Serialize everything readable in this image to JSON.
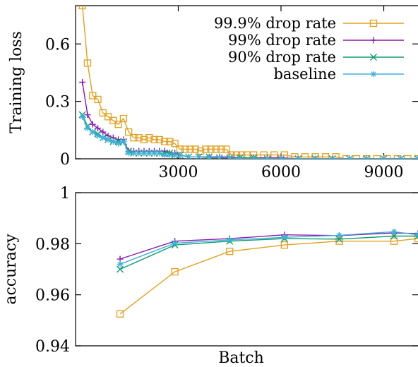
{
  "chart_data": [
    {
      "type": "line",
      "title": "",
      "xlabel": "",
      "ylabel": "Training loss",
      "xlim": [
        0,
        10000
      ],
      "ylim": [
        0,
        0.8
      ],
      "xticks": [
        3000,
        6000,
        9000
      ],
      "yticks": [
        0,
        0.3,
        0.6
      ],
      "x_tick_labels": [
        "3000",
        "6000",
        "9000"
      ],
      "y_tick_labels": [
        "0",
        "0.3",
        "0.6"
      ],
      "legend_position": "top-right",
      "series": [
        {
          "name": "99.9% drop rate",
          "color": "#e0a020",
          "marker": "square",
          "x": [
            200,
            350,
            500,
            650,
            800,
            950,
            1100,
            1250,
            1400,
            1550,
            1700,
            1850,
            2000,
            2150,
            2300,
            2450,
            2600,
            2750,
            2900,
            3050,
            3200,
            3350,
            3500,
            3650,
            3800,
            3950,
            4100,
            4250,
            4400,
            4550,
            4700,
            4850,
            5000,
            5200,
            5500,
            5800,
            6100,
            6400,
            6700,
            7000,
            7300,
            7600,
            7900,
            8200,
            8500,
            8800,
            9100,
            9400,
            9700,
            10000
          ],
          "values": [
            0.8,
            0.5,
            0.33,
            0.31,
            0.24,
            0.22,
            0.2,
            0.18,
            0.21,
            0.14,
            0.11,
            0.11,
            0.1,
            0.11,
            0.1,
            0.1,
            0.09,
            0.09,
            0.08,
            0.05,
            0.05,
            0.05,
            0.05,
            0.04,
            0.05,
            0.05,
            0.05,
            0.05,
            0.05,
            0.02,
            0.02,
            0.02,
            0.02,
            0.02,
            0.02,
            0.02,
            0.02,
            0.01,
            0.01,
            0.01,
            0.01,
            0.01,
            0.0,
            0.0,
            0.0,
            0.0,
            0.0,
            0.0,
            0.0,
            0.0
          ]
        },
        {
          "name": "99% drop rate",
          "color": "#8a1ab0",
          "marker": "plus",
          "x": [
            200,
            350,
            500,
            650,
            800,
            950,
            1100,
            1250,
            1400,
            1550,
            1700,
            1850,
            2000,
            2150,
            2300,
            2450,
            2600,
            2750,
            2900,
            3050,
            3300,
            3600,
            3900,
            4200,
            4500,
            4800,
            5200,
            5600,
            6000,
            6500,
            7000,
            7500,
            8000,
            8500,
            9000,
            9500,
            10000
          ],
          "values": [
            0.4,
            0.23,
            0.18,
            0.16,
            0.14,
            0.12,
            0.11,
            0.1,
            0.1,
            0.04,
            0.04,
            0.04,
            0.04,
            0.04,
            0.04,
            0.04,
            0.04,
            0.03,
            0.03,
            0.02,
            0.01,
            0.01,
            0.01,
            0.01,
            0.01,
            0.005,
            0.005,
            0.005,
            0.005,
            0.0,
            0.0,
            0.0,
            0.0,
            0.0,
            0.0,
            0.0,
            0.0
          ]
        },
        {
          "name": "90% drop rate",
          "color": "#109a70",
          "marker": "cross",
          "x": [
            200,
            350,
            500,
            650,
            800,
            950,
            1100,
            1250,
            1400,
            1550,
            1700,
            1850,
            2000,
            2150,
            2300,
            2450,
            2600,
            2750,
            2900,
            3050,
            3300,
            3600,
            3900,
            4200,
            4500,
            4800,
            5200,
            5600,
            6000,
            6500,
            7000,
            7500,
            8000,
            8500,
            9000,
            9500,
            10000
          ],
          "values": [
            0.23,
            0.17,
            0.14,
            0.13,
            0.11,
            0.1,
            0.09,
            0.09,
            0.09,
            0.04,
            0.03,
            0.03,
            0.03,
            0.03,
            0.03,
            0.03,
            0.03,
            0.03,
            0.02,
            0.02,
            0.01,
            0.01,
            0.01,
            0.005,
            0.005,
            0.005,
            0.005,
            0.0,
            0.0,
            0.0,
            0.0,
            0.0,
            0.0,
            0.0,
            0.0,
            0.0,
            0.0
          ]
        },
        {
          "name": "baseline",
          "color": "#40b0d8",
          "marker": "star",
          "x": [
            200,
            350,
            500,
            650,
            800,
            950,
            1100,
            1250,
            1400,
            1550,
            1700,
            1850,
            2000,
            2150,
            2300,
            2450,
            2600,
            2750,
            2900,
            3050,
            3300,
            3600,
            3900,
            4200,
            4500,
            4800,
            5200,
            5600,
            6000,
            6500,
            7000,
            7500,
            8000,
            8500,
            9000,
            9500,
            10000
          ],
          "values": [
            0.22,
            0.16,
            0.14,
            0.12,
            0.11,
            0.1,
            0.09,
            0.08,
            0.09,
            0.03,
            0.03,
            0.03,
            0.03,
            0.03,
            0.03,
            0.03,
            0.02,
            0.02,
            0.02,
            0.02,
            0.01,
            0.01,
            0.005,
            0.005,
            0.005,
            0.0,
            0.0,
            0.0,
            0.0,
            0.0,
            0.0,
            0.0,
            0.0,
            0.0,
            0.0,
            0.0,
            0.0
          ]
        }
      ]
    },
    {
      "type": "line",
      "title": "",
      "xlabel": "Batch",
      "ylabel": "accuracy",
      "xlim": [
        0,
        10000
      ],
      "ylim": [
        0.94,
        1.0
      ],
      "yticks": [
        0.94,
        0.96,
        0.98,
        1.0
      ],
      "y_tick_labels": [
        "0.94",
        "0.96",
        "0.98",
        "1"
      ],
      "series": [
        {
          "name": "99.9% drop rate",
          "color": "#e0a020",
          "marker": "square",
          "x": [
            1300,
            2900,
            4500,
            6100,
            7700,
            9300,
            10000
          ],
          "values": [
            0.9525,
            0.969,
            0.977,
            0.9795,
            0.981,
            0.981,
            0.982
          ]
        },
        {
          "name": "99% drop rate",
          "color": "#8a1ab0",
          "marker": "plus",
          "x": [
            1300,
            2900,
            4500,
            6100,
            7700,
            9300,
            10000
          ],
          "values": [
            0.974,
            0.981,
            0.982,
            0.9835,
            0.9832,
            0.9842,
            0.984
          ]
        },
        {
          "name": "90% drop rate",
          "color": "#109a70",
          "marker": "cross",
          "x": [
            1300,
            2900,
            4500,
            6100,
            7700,
            9300,
            10000
          ],
          "values": [
            0.97,
            0.9795,
            0.981,
            0.982,
            0.9818,
            0.983,
            0.983
          ]
        },
        {
          "name": "baseline",
          "color": "#40b0d8",
          "marker": "star",
          "x": [
            1300,
            2900,
            4500,
            6100,
            7700,
            9300,
            10000
          ],
          "values": [
            0.972,
            0.9802,
            0.9815,
            0.9825,
            0.9833,
            0.9847,
            0.9835
          ]
        }
      ]
    }
  ]
}
